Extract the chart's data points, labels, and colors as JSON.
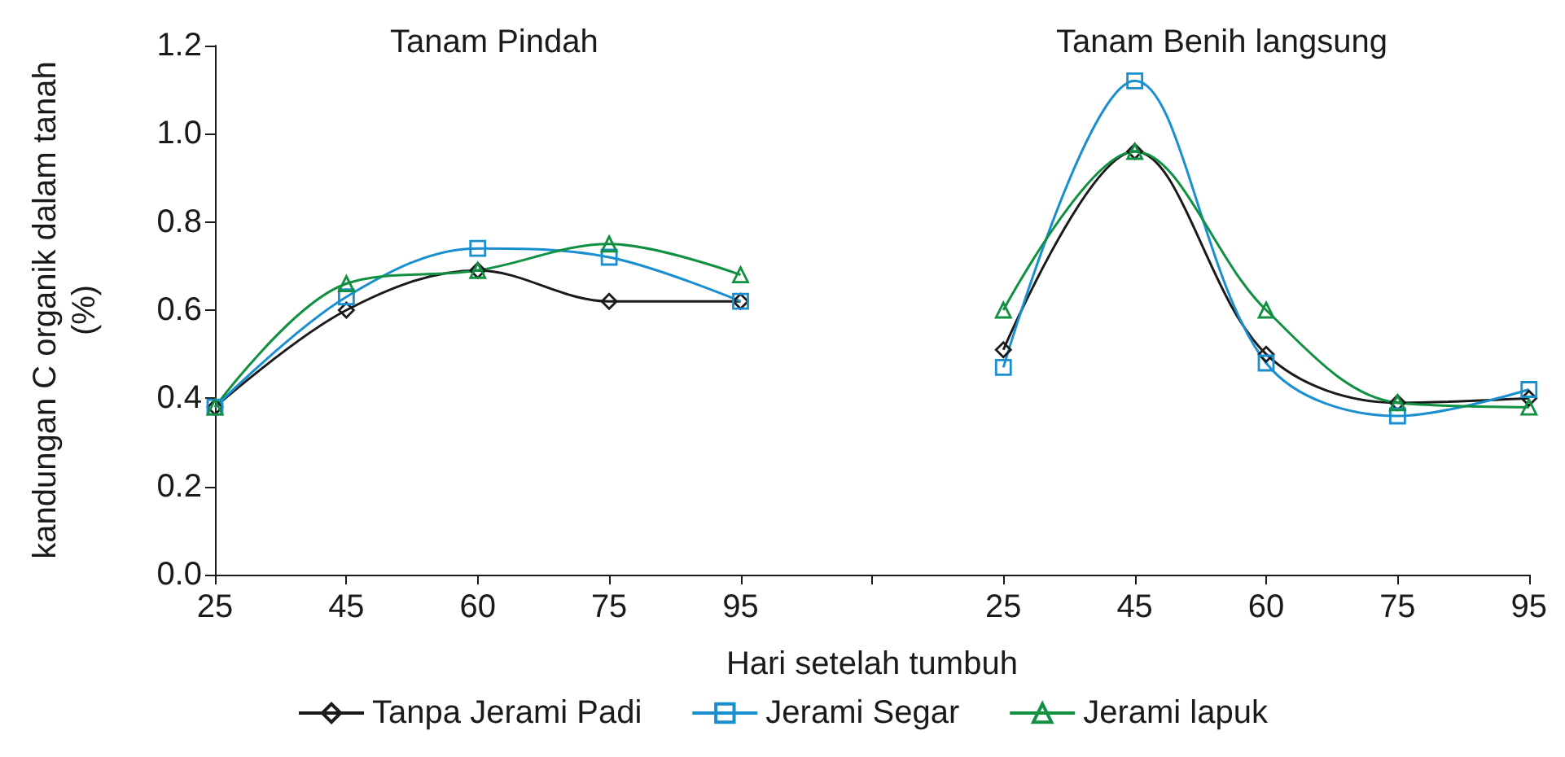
{
  "chart_data": {
    "type": "line",
    "xlabel": "Hari setelah tumbuh",
    "ylabel": "kandungan C organik dalam tanah\n(%)",
    "categories": [
      "25",
      "45",
      "60",
      "75",
      "95",
      null,
      "25",
      "45",
      "60",
      "75",
      "95"
    ],
    "series": [
      {
        "name": "Tanpa Jerami Padi",
        "color": "#1a1a1a",
        "marker": "diamond",
        "values": [
          0.38,
          0.6,
          0.69,
          0.62,
          0.62,
          null,
          0.51,
          0.96,
          0.5,
          0.39,
          0.4
        ]
      },
      {
        "name": "Jerami Segar",
        "color": "#1a8fd0",
        "marker": "square",
        "values": [
          0.38,
          0.63,
          0.74,
          0.72,
          0.62,
          null,
          0.47,
          1.12,
          0.48,
          0.36,
          0.42
        ]
      },
      {
        "name": "Jerami lapuk",
        "color": "#109040",
        "marker": "triangle",
        "values": [
          0.38,
          0.66,
          0.69,
          0.75,
          0.68,
          null,
          0.6,
          0.96,
          0.6,
          0.39,
          0.38
        ]
      }
    ],
    "ylim": [
      0,
      1.2
    ],
    "yticks": [
      {
        "value": 0,
        "label": "0.0"
      },
      0.2,
      0.4,
      0.6,
      0.8,
      {
        "value": 1,
        "label": "1.0"
      },
      1.2
    ],
    "grid": false,
    "legend": "bottom",
    "line_style": "solid",
    "annotations": [
      "Tanam Pindah",
      "Tanam Benih langsung"
    ]
  }
}
